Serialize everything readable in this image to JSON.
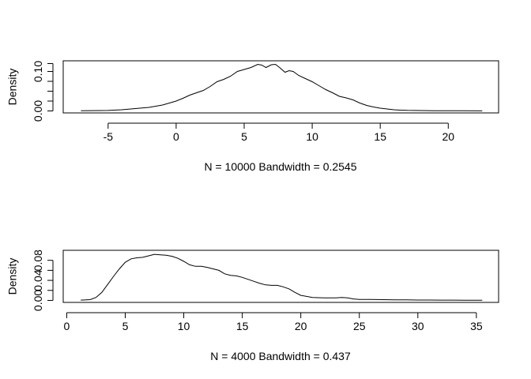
{
  "chart_data": [
    {
      "type": "line",
      "title": "",
      "xlabel": "N = 10000   Bandwidth = 0.2545",
      "ylabel": "Density",
      "xlim": [
        -8.3,
        23.7
      ],
      "ylim": [
        -0.005,
        0.127
      ],
      "xticks": [
        -5,
        0,
        5,
        10,
        15,
        20
      ],
      "xtick_labels": [
        "-5",
        "0",
        "5",
        "10",
        "15",
        "20"
      ],
      "yticks": [
        0.0,
        0.025,
        0.05,
        0.075,
        0.1,
        0.12
      ],
      "ytick_labels": [
        "0.00",
        "0.10"
      ],
      "ytick_label_values": [
        0.0,
        0.1
      ],
      "grid": false,
      "series": [
        {
          "name": "",
          "x": [
            -7.0,
            -5.0,
            -4.0,
            -3.0,
            -2.0,
            -1.0,
            0.0,
            0.5,
            1.0,
            1.5,
            2.0,
            2.5,
            3.0,
            3.5,
            4.0,
            4.5,
            5.0,
            5.5,
            6.0,
            6.3,
            6.6,
            7.0,
            7.3,
            7.6,
            8.0,
            8.3,
            8.6,
            9.0,
            9.5,
            10.0,
            10.5,
            11.0,
            11.5,
            12.0,
            12.5,
            13.0,
            13.5,
            14.0,
            14.5,
            15.0,
            15.5,
            16.0,
            16.5,
            17.0,
            17.5,
            18.0,
            19.0,
            20.0,
            21.0,
            22.5
          ],
          "y": [
            0.0005,
            0.0012,
            0.003,
            0.006,
            0.009,
            0.015,
            0.025,
            0.032,
            0.04,
            0.046,
            0.052,
            0.062,
            0.074,
            0.08,
            0.088,
            0.1,
            0.105,
            0.11,
            0.118,
            0.116,
            0.11,
            0.117,
            0.118,
            0.11,
            0.098,
            0.102,
            0.1,
            0.09,
            0.082,
            0.074,
            0.064,
            0.054,
            0.046,
            0.037,
            0.033,
            0.028,
            0.02,
            0.014,
            0.01,
            0.007,
            0.005,
            0.003,
            0.002,
            0.0015,
            0.0012,
            0.001,
            0.0006,
            0.0004,
            0.0003,
            0.0002
          ]
        }
      ],
      "legend": "none"
    },
    {
      "type": "line",
      "title": "",
      "xlabel": "N = 4000   Bandwidth = 0.437",
      "ylabel": "Density",
      "xlim": [
        -0.3,
        36.9
      ],
      "ylim": [
        -0.004,
        0.1
      ],
      "xticks": [
        0,
        5,
        10,
        15,
        20,
        25,
        30,
        35
      ],
      "xtick_labels": [
        "0",
        "5",
        "10",
        "15",
        "20",
        "25",
        "30",
        "35"
      ],
      "yticks": [
        0.0,
        0.02,
        0.04,
        0.06,
        0.08
      ],
      "ytick_labels": [
        "0.00",
        "0.04",
        "0.08"
      ],
      "ytick_label_values": [
        0.0,
        0.04,
        0.08
      ],
      "grid": false,
      "series": [
        {
          "name": "",
          "x": [
            1.2,
            2.0,
            2.5,
            3.0,
            3.5,
            4.0,
            4.5,
            5.0,
            5.5,
            6.0,
            6.5,
            7.0,
            7.5,
            8.0,
            8.5,
            9.0,
            9.5,
            10.0,
            10.5,
            11.0,
            11.5,
            12.0,
            12.5,
            13.0,
            13.5,
            14.0,
            14.5,
            15.0,
            15.5,
            16.0,
            16.5,
            17.0,
            17.5,
            18.0,
            18.5,
            19.0,
            19.5,
            20.0,
            21.0,
            22.0,
            23.0,
            23.5,
            24.0,
            24.5,
            25.0,
            26.0,
            27.0,
            28.0,
            29.0,
            30.0,
            31.0,
            32.0,
            33.0,
            34.0,
            35.0,
            35.5
          ],
          "y": [
            0.0005,
            0.0015,
            0.006,
            0.016,
            0.032,
            0.048,
            0.063,
            0.076,
            0.083,
            0.085,
            0.086,
            0.089,
            0.092,
            0.091,
            0.09,
            0.088,
            0.084,
            0.078,
            0.071,
            0.068,
            0.068,
            0.066,
            0.063,
            0.06,
            0.053,
            0.05,
            0.049,
            0.046,
            0.042,
            0.038,
            0.034,
            0.031,
            0.03,
            0.03,
            0.027,
            0.023,
            0.016,
            0.01,
            0.006,
            0.005,
            0.005,
            0.006,
            0.005,
            0.003,
            0.002,
            0.002,
            0.0015,
            0.001,
            0.001,
            0.0008,
            0.0008,
            0.0006,
            0.0005,
            0.0004,
            0.0003,
            0.0002
          ]
        }
      ],
      "legend": "none"
    }
  ]
}
